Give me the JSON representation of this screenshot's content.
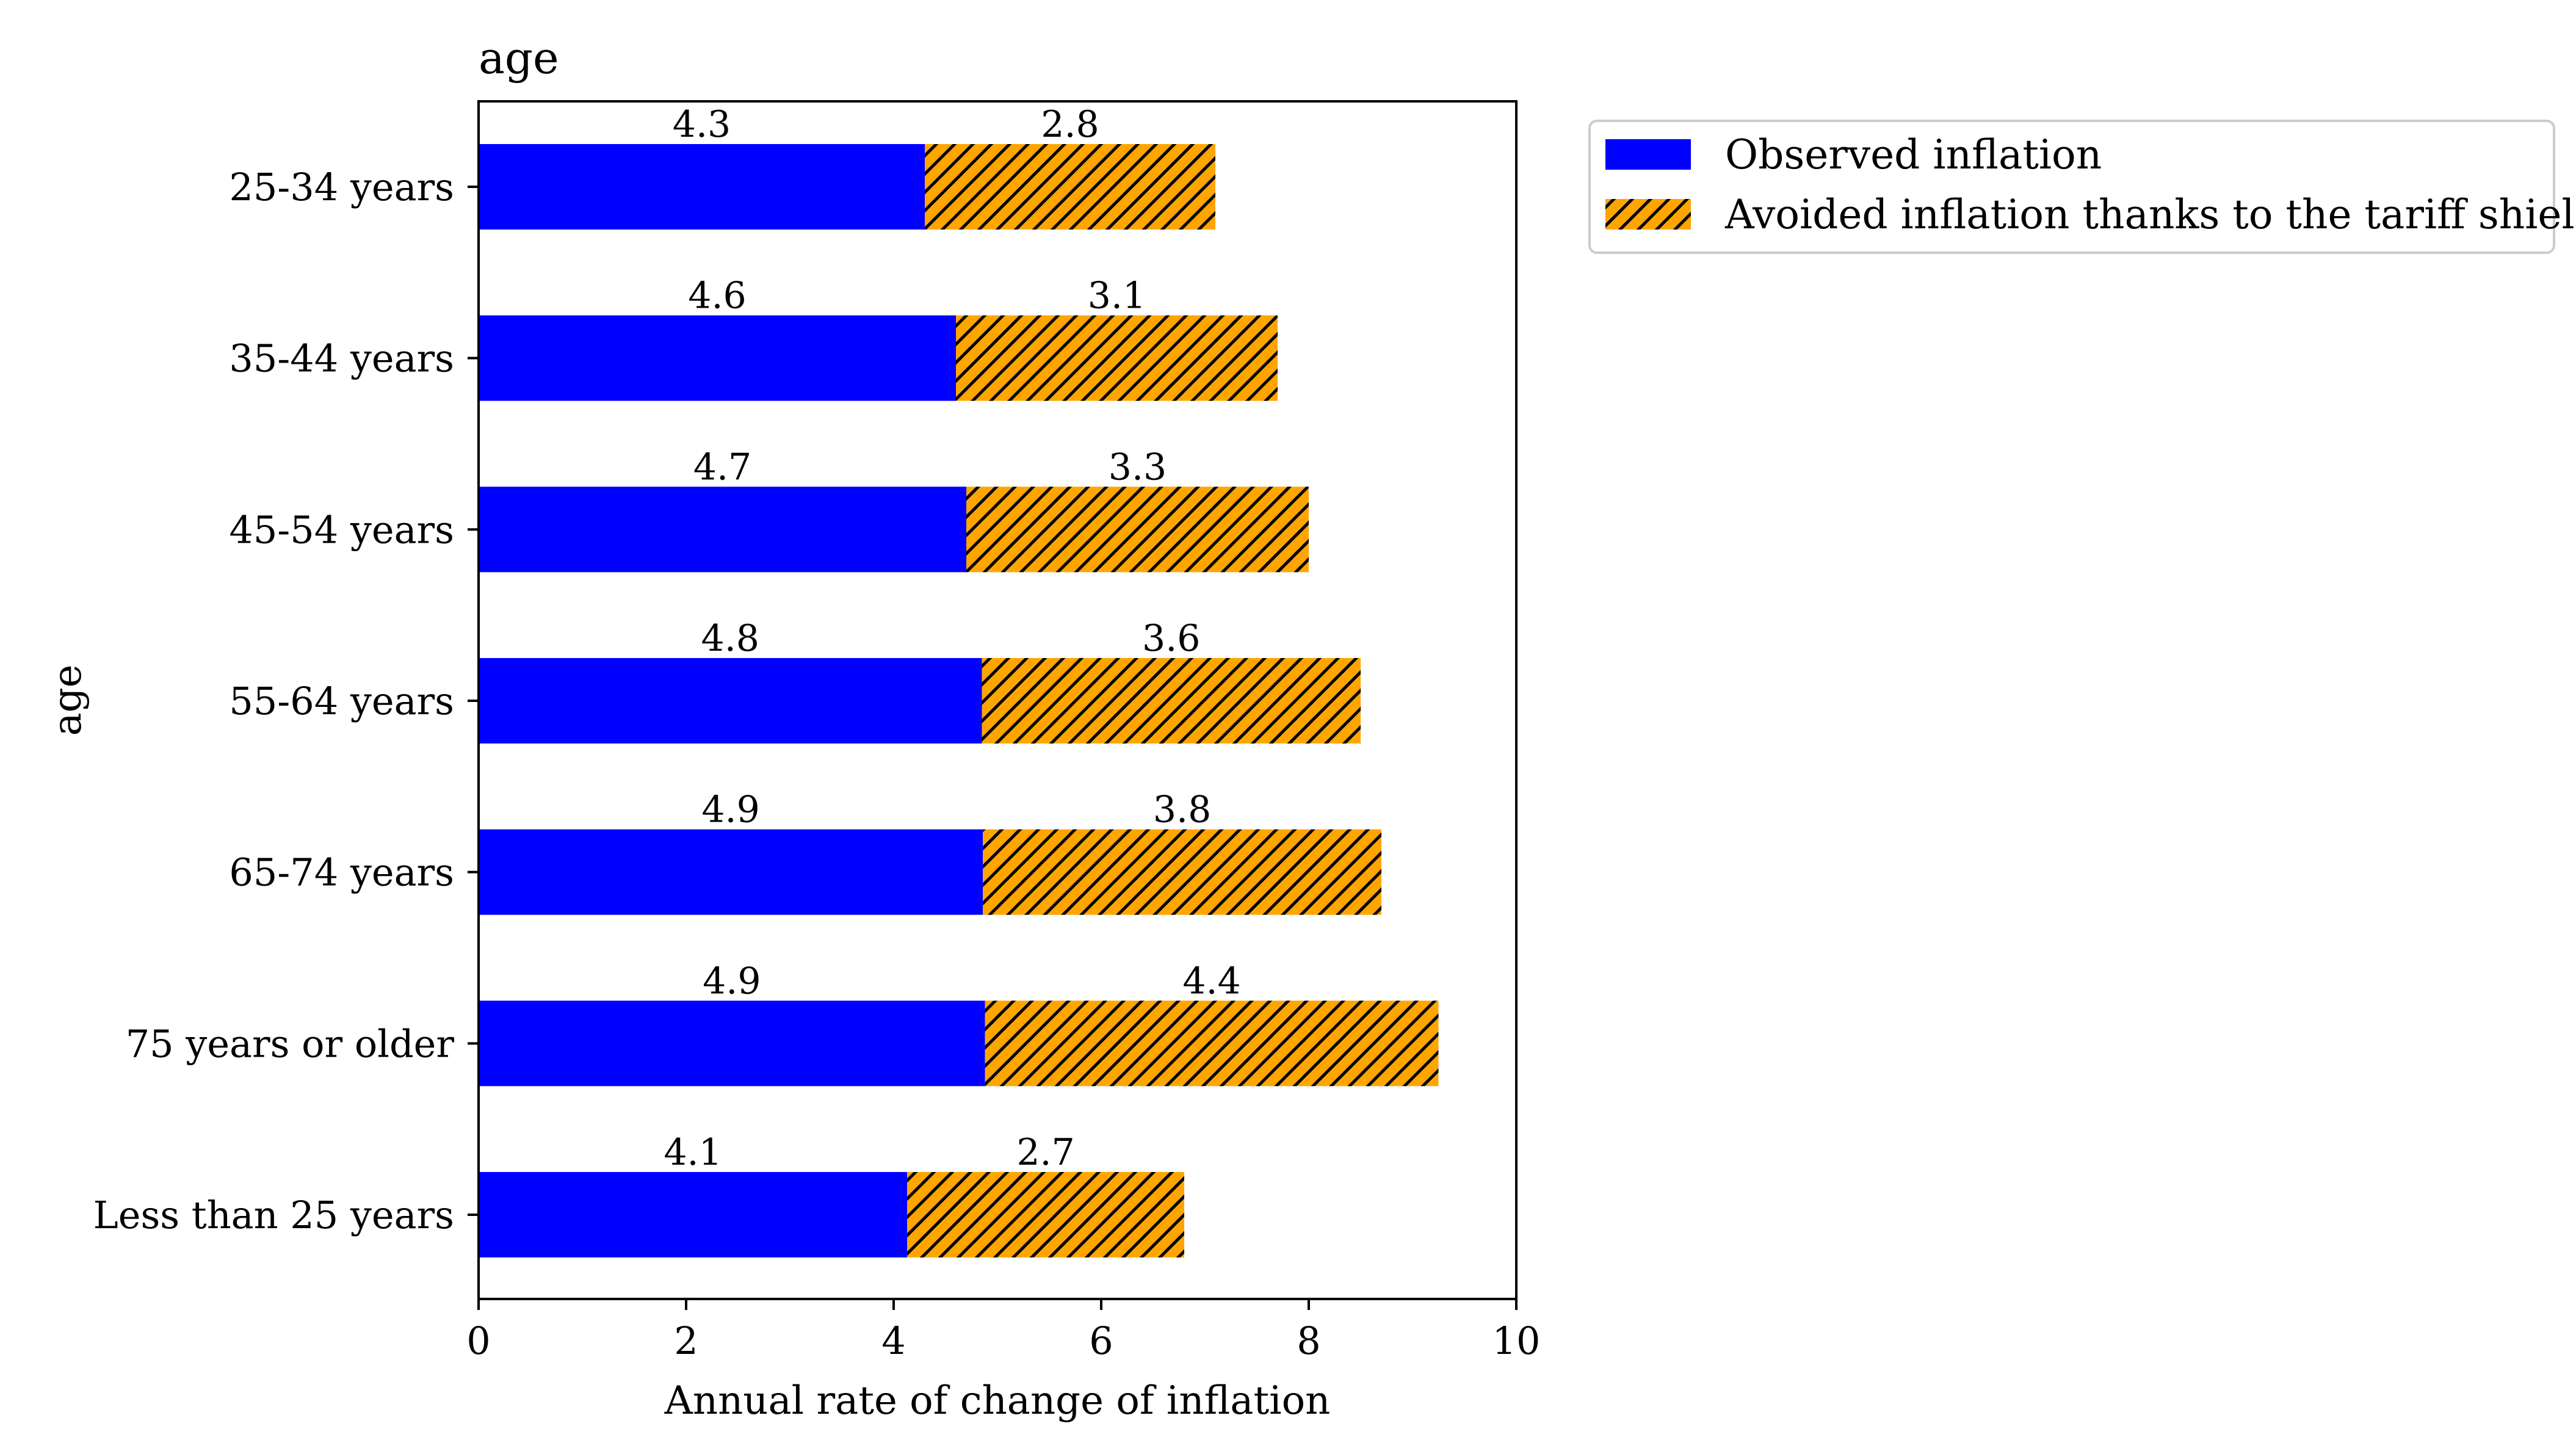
{
  "chart_data": {
    "type": "bar",
    "orientation": "horizontal",
    "stacked": true,
    "title": "age",
    "xlabel": "Annual rate of change of inflation",
    "ylabel": "age",
    "xlim": [
      0,
      10
    ],
    "xticks": [
      "0",
      "2",
      "4",
      "6",
      "8",
      "10"
    ],
    "categories": [
      "25-34 years",
      "35-44 years",
      "45-54 years",
      "55-64 years",
      "65-74 years",
      "75 years or older",
      "Less than 25 years"
    ],
    "series": [
      {
        "name": "Observed inflation",
        "color": "#0000ff",
        "pattern": "solid",
        "values": [
          4.3,
          4.6,
          4.7,
          4.85,
          4.86,
          4.88,
          4.13
        ],
        "labels": [
          "4.3",
          "4.6",
          "4.7",
          "4.8",
          "4.9",
          "4.9",
          "4.1"
        ]
      },
      {
        "name": "Avoided inflation thanks to the tariff shield",
        "color": "#ffa500",
        "pattern": "hatch",
        "values": [
          2.8,
          3.1,
          3.3,
          3.65,
          3.84,
          4.37,
          2.67
        ],
        "labels": [
          "2.8",
          "3.1",
          "3.3",
          "3.6",
          "3.8",
          "4.4",
          "2.7"
        ]
      }
    ],
    "grid": false,
    "legend_position": "outside-top-right"
  }
}
